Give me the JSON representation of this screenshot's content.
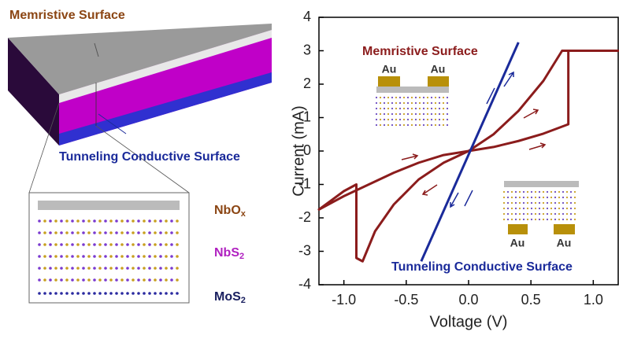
{
  "schematic": {
    "top_label": "Memristive Surface",
    "bottom_label": "Tunneling Conductive Surface",
    "layers": [
      {
        "base": "NbO",
        "sub": "x"
      },
      {
        "base": "NbS",
        "sub": "2"
      },
      {
        "base": "MoS",
        "sub": "2"
      }
    ]
  },
  "chart_data": {
    "type": "line",
    "x_label": "Voltage (V)",
    "y_label": "Current (mA)",
    "xlim": [
      -1.2,
      1.2
    ],
    "ylim": [
      -4,
      4
    ],
    "xticks": [
      {
        "value": -1,
        "label": "-1.0"
      },
      {
        "value": -0.5,
        "label": "-0.5"
      },
      {
        "value": 0,
        "label": "0.0"
      },
      {
        "value": 0.5,
        "label": "0.5"
      },
      {
        "value": 1,
        "label": "1.0"
      }
    ],
    "yticks": [
      -4,
      -3,
      -2,
      -1,
      0,
      1,
      2,
      3,
      4
    ],
    "series": [
      {
        "name": "Memristive Surface",
        "color": "#8b1c1c",
        "x": [
          0,
          0.2,
          0.4,
          0.6,
          0.8,
          0.8,
          1.2,
          0.75,
          0.6,
          0.4,
          0.2,
          0,
          -0.2,
          -0.4,
          -0.6,
          -0.75,
          -0.85,
          -0.9,
          -0.9,
          -1.0,
          -1.2,
          -1.0,
          -0.8,
          -0.6,
          -0.4,
          -0.2,
          0
        ],
        "values": [
          0,
          0.12,
          0.3,
          0.52,
          0.8,
          3,
          3,
          3,
          2.1,
          1.2,
          0.5,
          0,
          -0.35,
          -0.85,
          -1.6,
          -2.4,
          -3.3,
          -3.2,
          -1.0,
          -1.2,
          -1.75,
          -1.35,
          -1.0,
          -0.65,
          -0.35,
          -0.12,
          0
        ]
      },
      {
        "name": "Tunneling Conductive Surface",
        "color": "#1a2a9a",
        "x": [
          -0.38,
          0.4
        ],
        "values": [
          -3.3,
          3.25
        ]
      }
    ],
    "insets": {
      "top_pads": [
        "Au",
        "Au"
      ],
      "bottom_pads": [
        "Au",
        "Au"
      ]
    }
  }
}
